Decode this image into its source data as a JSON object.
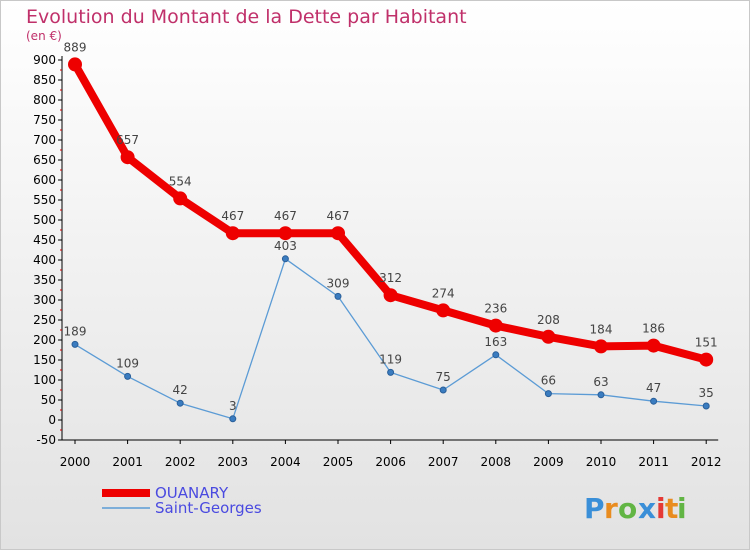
{
  "chart_data": {
    "type": "line",
    "title": "Evolution du Montant de la Dette par Habitant",
    "subtitle": "(en €)",
    "x": [
      "2000",
      "2001",
      "2002",
      "2003",
      "2004",
      "2005",
      "2006",
      "2007",
      "2008",
      "2009",
      "2010",
      "2011",
      "2012"
    ],
    "y_ticks": [
      -50,
      0,
      50,
      100,
      150,
      200,
      250,
      300,
      350,
      400,
      450,
      500,
      550,
      600,
      650,
      700,
      750,
      800,
      850,
      900
    ],
    "ylim": [
      -50,
      900
    ],
    "grid": false,
    "legend_position": "bottom-left",
    "series": [
      {
        "name": "OUANARY",
        "color": "#ee0000",
        "values": [
          889,
          657,
          554,
          467,
          467,
          467,
          312,
          274,
          236,
          208,
          184,
          186,
          151
        ],
        "labels": [
          "889",
          "657",
          "554",
          "467",
          "467",
          "467",
          "312",
          "274",
          "236",
          "208",
          "184",
          "186",
          "151"
        ]
      },
      {
        "name": "Saint-Georges",
        "color": "#5b9bd5",
        "values": [
          189,
          109,
          42,
          3,
          403,
          309,
          119,
          75,
          163,
          66,
          63,
          47,
          35
        ],
        "labels": [
          "189",
          "109",
          "42",
          "3",
          "403",
          "309",
          "119",
          "75",
          "163",
          "66",
          "63",
          "47",
          "35"
        ]
      }
    ],
    "colors": {
      "title": "#c0306a",
      "axis": "#000000",
      "plot_bg_top": "#ffffff",
      "plot_bg_bottom": "#e2e2e2",
      "legend_text": "#4a4ae0"
    }
  },
  "logo": {
    "text": "Proxiti"
  }
}
